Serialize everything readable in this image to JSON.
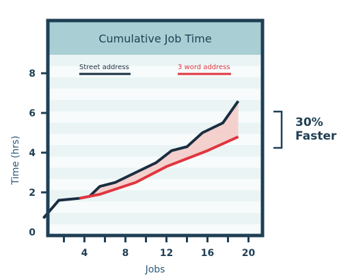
{
  "chart_data": {
    "type": "line",
    "title": "Cumulative Job Time",
    "xlabel": "Jobs",
    "ylabel": "Time (hrs)",
    "xlim": [
      0,
      20
    ],
    "ylim": [
      0,
      8
    ],
    "x_ticks": [
      4,
      8,
      12,
      16,
      20
    ],
    "y_ticks": [
      0,
      2,
      4,
      6,
      8
    ],
    "legend_position": "top",
    "series": [
      {
        "name": "Street address",
        "color": "#1a2e40",
        "x": [
          0,
          1.5,
          3.5,
          4.5,
          5.5,
          7,
          9,
          11,
          12.5,
          14,
          15.5,
          17.5,
          19
        ],
        "y": [
          0.7,
          1.6,
          1.7,
          1.8,
          2.3,
          2.5,
          3.0,
          3.5,
          4.1,
          4.3,
          5.0,
          5.5,
          6.6
        ]
      },
      {
        "name": "3 word address",
        "color": "#e0363f",
        "x": [
          3.5,
          5.5,
          9,
          12,
          16,
          19
        ],
        "y": [
          1.7,
          1.9,
          2.5,
          3.3,
          4.1,
          4.8
        ]
      }
    ],
    "annotation": {
      "line1": "30%",
      "line2": "Faster"
    }
  }
}
